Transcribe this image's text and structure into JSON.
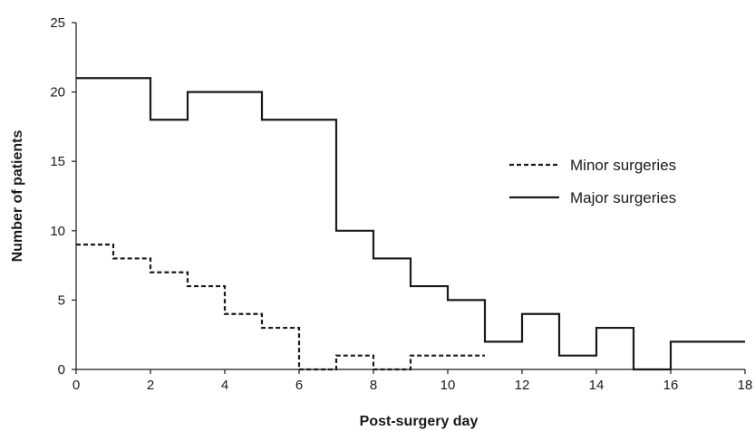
{
  "chart_data": {
    "type": "line",
    "step": true,
    "title": "",
    "xlabel": "Post-surgery day",
    "ylabel": "Number of patients",
    "xlim": [
      0,
      18
    ],
    "ylim": [
      0,
      25
    ],
    "xticks": [
      "0",
      "2",
      "4",
      "6",
      "8",
      "10",
      "12",
      "14",
      "16",
      "18"
    ],
    "yticks": [
      "0",
      "5",
      "10",
      "15",
      "20",
      "25"
    ],
    "grid": false,
    "legend_position": "right",
    "series": [
      {
        "name": "Minor surgeries",
        "style": "dashed",
        "color": "#1a1a1a",
        "x": [
          0,
          1,
          2,
          3,
          4,
          5,
          6,
          7,
          8,
          9,
          10
        ],
        "y": [
          9,
          8,
          7,
          6,
          4,
          3,
          0,
          1,
          0,
          1,
          1
        ]
      },
      {
        "name": "Major surgeries",
        "style": "solid",
        "color": "#1a1a1a",
        "x": [
          0,
          1,
          2,
          3,
          4,
          5,
          6,
          7,
          8,
          9,
          10,
          11,
          12,
          13,
          14,
          15,
          16,
          17
        ],
        "y": [
          21,
          21,
          18,
          20,
          20,
          18,
          18,
          10,
          8,
          6,
          5,
          2,
          4,
          1,
          3,
          0,
          2,
          2
        ]
      }
    ]
  }
}
